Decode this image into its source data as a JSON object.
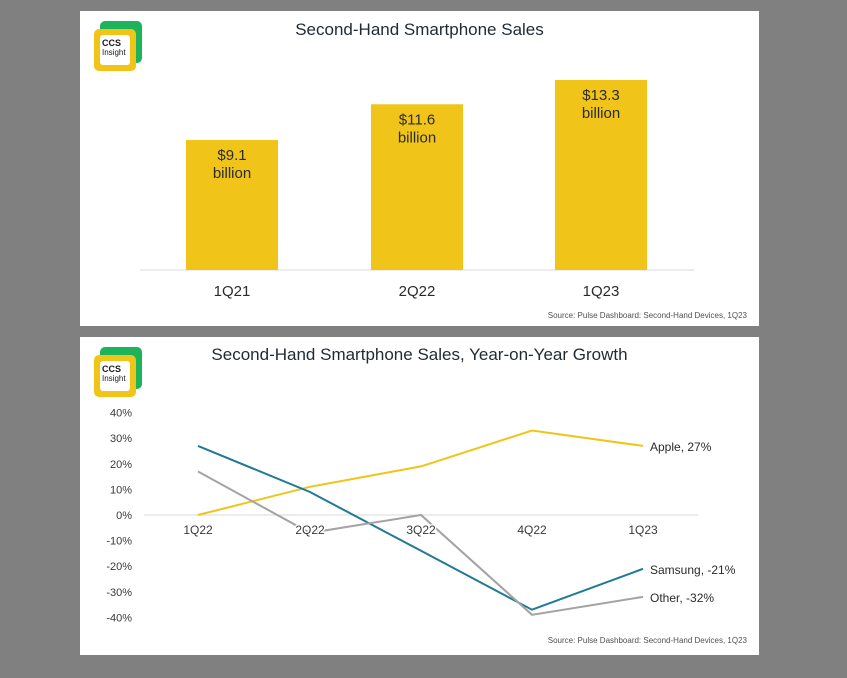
{
  "logo": {
    "line1": "CCS",
    "line2": "Insight"
  },
  "chart_data": [
    {
      "type": "bar",
      "title": "Second-Hand Smartphone Sales",
      "categories": [
        "1Q21",
        "2Q22",
        "1Q23"
      ],
      "values": [
        9.1,
        11.6,
        13.3
      ],
      "value_labels": [
        [
          "$9.1",
          "billion"
        ],
        [
          "$11.6",
          "billion"
        ],
        [
          "$13.3",
          "billion"
        ]
      ],
      "ylim": [
        0,
        13.3
      ],
      "xlabel": "",
      "ylabel": "",
      "color": "#f0c419",
      "source": "Source: Pulse Dashboard: Second-Hand Devices, 1Q23"
    },
    {
      "type": "line",
      "title": "Second-Hand Smartphone Sales, Year-on-Year Growth",
      "x": [
        "1Q22",
        "2Q22",
        "3Q22",
        "4Q22",
        "1Q23"
      ],
      "y_ticks": [
        "40%",
        "30%",
        "20%",
        "10%",
        "0%",
        "-10%",
        "-20%",
        "-30%",
        "-40%"
      ],
      "ylim": [
        -40,
        40
      ],
      "series": [
        {
          "name": "Apple",
          "label": "Apple, 27%",
          "color": "#f0c419",
          "values": [
            0,
            11,
            19,
            33,
            27
          ]
        },
        {
          "name": "Samsung",
          "label": "Samsung, -21%",
          "color": "#1f7a94",
          "values": [
            27,
            9,
            -14,
            -37,
            -21
          ]
        },
        {
          "name": "Other",
          "label": "Other, -32%",
          "color": "#a3a3a3",
          "values": [
            17,
            -7,
            0,
            -39,
            -32
          ]
        }
      ],
      "source": "Source: Pulse Dashboard: Second-Hand Devices, 1Q23"
    }
  ]
}
